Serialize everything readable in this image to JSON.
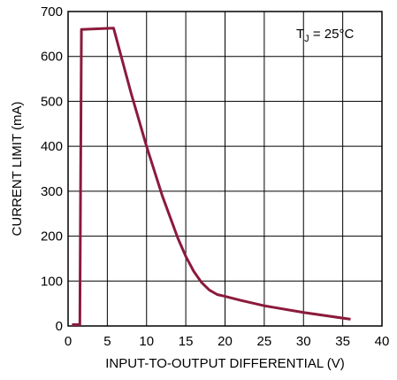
{
  "chart_data": {
    "type": "line",
    "title": "",
    "xlabel": "INPUT-TO-OUTPUT DIFFERENTIAL (V)",
    "ylabel": "CURRENT LIMIT (mA)",
    "xlim": [
      0,
      40
    ],
    "ylim": [
      0,
      700
    ],
    "xticks": [
      0,
      5,
      10,
      15,
      20,
      25,
      30,
      35,
      40
    ],
    "yticks": [
      0,
      100,
      200,
      300,
      400,
      500,
      600,
      700
    ],
    "xtick_labels": [
      "0",
      "5",
      "10",
      "15",
      "20",
      "25",
      "30",
      "35",
      "40"
    ],
    "ytick_labels": [
      "0",
      "100",
      "200",
      "300",
      "400",
      "500",
      "600",
      "700"
    ],
    "grid": true,
    "annotation": {
      "main": "T",
      "sub": "J",
      "rest": " = 25°C",
      "placement": "top-right"
    },
    "series": [
      {
        "color": "#8b1a3c",
        "x": [
          0.5,
          1.5,
          1.7,
          5.8,
          8,
          10,
          12,
          14,
          15,
          16,
          17,
          18,
          19,
          20,
          22,
          25,
          30,
          36
        ],
        "y": [
          3,
          3,
          660,
          663,
          520,
          400,
          290,
          195,
          155,
          122,
          97,
          80,
          70,
          66,
          57,
          45,
          30,
          15
        ]
      }
    ]
  }
}
